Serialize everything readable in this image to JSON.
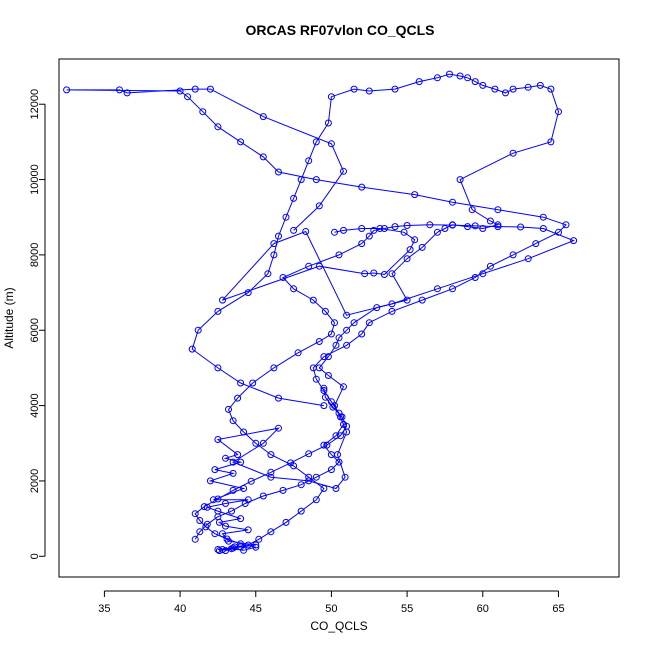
{
  "chart_data": {
    "type": "line",
    "title": "ORCAS RF07vlon CO_QCLS",
    "xlabel": "CO_QCLS",
    "ylabel": "Altitude (m)",
    "xlim": [
      32,
      69
    ],
    "ylim": [
      -550,
      13200
    ],
    "xticks": [
      "35",
      "40",
      "45",
      "50",
      "55",
      "60",
      "65"
    ],
    "yticks": [
      "0",
      "2000",
      "4000",
      "6000",
      "8000",
      "10000",
      "12000"
    ],
    "grid": false,
    "legend": "none",
    "colors": {
      "series": "#0000ff",
      "axis": "#000000"
    },
    "series": [
      {
        "x": [
          43.0,
          44.0,
          42.5,
          43.5,
          45.0,
          43.2,
          42.8,
          44.5,
          43.0,
          42.6,
          44.0,
          42.5,
          41.8,
          43.0,
          44.5,
          42.2,
          44.2,
          42.0,
          43.5,
          42.3,
          44.0,
          43.0,
          43.8,
          42.5,
          46.5,
          45.5,
          43.5,
          46.0,
          48.5,
          50.3,
          50.9,
          50.4,
          51.0,
          50.6,
          50.2,
          50.8,
          49.8,
          49.2,
          49.8,
          50.3,
          50.5,
          51.0,
          51.5,
          53.0,
          55.0,
          54.0,
          55.0,
          56.0,
          57.0,
          57.5,
          58.0,
          59.0,
          60.0,
          61.0,
          60.5,
          59.3,
          58.5,
          62.0,
          64.5,
          65.0,
          64.5,
          63.8,
          63.0,
          62.0,
          61.5,
          60.8,
          60.0,
          59.5,
          59.0,
          58.5,
          57.8,
          57.0,
          55.8,
          54.2,
          52.5,
          51.5,
          50.0,
          49.8,
          49.0,
          48.5,
          48.0,
          47.5,
          47.0,
          46.5,
          46.2,
          45.8,
          44.5,
          42.5,
          41.2,
          40.8,
          42.5,
          44.0,
          46.5,
          49.5
        ],
        "y": [
          150,
          250,
          180,
          220,
          300,
          400,
          600,
          700,
          800,
          900,
          1000,
          1200,
          1300,
          1400,
          1500,
          1500,
          1800,
          2000,
          2200,
          2300,
          2500,
          2600,
          2700,
          3100,
          3400,
          3000,
          2500,
          2100,
          2000,
          1800,
          2100,
          2700,
          3300,
          3700,
          4000,
          4500,
          4800,
          5000,
          5300,
          5600,
          5800,
          6000,
          6200,
          6600,
          6800,
          7500,
          7900,
          8200,
          8600,
          8700,
          8800,
          8750,
          8700,
          8800,
          8900,
          9200,
          10000,
          10700,
          11000,
          11800,
          12400,
          12500,
          12450,
          12400,
          12300,
          12400,
          12500,
          12600,
          12700,
          12750,
          12800,
          12700,
          12600,
          12400,
          12350,
          12400,
          12200,
          11500,
          11000,
          10500,
          10000,
          9500,
          9000,
          8500,
          8000,
          7500,
          7000,
          6500,
          6000,
          5500,
          5000,
          4600,
          4200,
          4000
        ]
      },
      {
        "x": [
          42.8,
          43.6,
          44.5,
          45.2,
          46.0,
          47.0,
          48.0,
          49.0,
          49.5,
          48.5,
          47.5,
          46.0,
          45.0,
          44.2,
          43.5,
          43.2,
          43.8,
          44.8,
          46.2,
          47.8,
          49.2,
          50.0,
          50.2,
          49.6,
          48.8,
          47.5,
          46.8,
          48.5,
          50.5,
          52.0,
          52.5,
          52.8,
          53.5,
          54.2,
          55.0,
          56.5,
          58.0,
          59.5,
          61.0,
          62.5,
          64.0,
          66.0,
          63.0,
          60.0,
          57.0,
          54.0,
          51.0,
          48.3,
          46.2,
          42.8,
          49.2,
          52.2,
          52.8,
          53.5,
          55.2,
          55.5,
          54.8,
          53.2,
          52.0,
          50.8,
          50.2
        ],
        "y": [
          180,
          250,
          300,
          450,
          650,
          900,
          1200,
          1500,
          1800,
          2100,
          2400,
          2700,
          3000,
          3300,
          3600,
          3900,
          4200,
          4600,
          5000,
          5400,
          5700,
          5900,
          6200,
          6500,
          6800,
          7100,
          7400,
          7700,
          8000,
          8300,
          8500,
          8650,
          8700,
          8750,
          8780,
          8800,
          8790,
          8770,
          8750,
          8740,
          8700,
          8380,
          7900,
          7500,
          7100,
          6700,
          6400,
          8620,
          8300,
          6800,
          7700,
          7500,
          7520,
          7480,
          8140,
          8400,
          8600,
          8700,
          8700,
          8650,
          8600
        ]
      },
      {
        "x": [
          41.0,
          41.3,
          41.8,
          42.5,
          43.4,
          44.3,
          45.5,
          46.8,
          48.0,
          49.0,
          50.0,
          50.5,
          50.0,
          49.5,
          50.3,
          50.8,
          50.5,
          50.0,
          49.5,
          49.0,
          48.8,
          49.5,
          51.0,
          52.0,
          52.5,
          54.0,
          56.0,
          58.0,
          59.5,
          60.5,
          62.0,
          63.5,
          65.0,
          65.5,
          64.0,
          61.0,
          58.0,
          55.5,
          52.0,
          49.0,
          46.5,
          45.5,
          44.0,
          42.5,
          41.5,
          40.5,
          40.0,
          32.5,
          36.0,
          36.5,
          41.0,
          42.0,
          45.5,
          50.0,
          50.8,
          49.2,
          47.5
        ],
        "y": [
          450,
          650,
          850,
          1050,
          1200,
          1400,
          1600,
          1750,
          1900,
          2100,
          2300,
          2500,
          2700,
          2950,
          3200,
          3500,
          3800,
          4100,
          4400,
          4700,
          5000,
          5300,
          5600,
          5900,
          6200,
          6500,
          6800,
          7100,
          7400,
          7700,
          8000,
          8300,
          8600,
          8800,
          9000,
          9200,
          9400,
          9600,
          9800,
          10000,
          10200,
          10600,
          11000,
          11400,
          11800,
          12200,
          12350,
          12380,
          12380,
          12300,
          12400,
          12400,
          11670,
          10950,
          10220,
          9300,
          8650
        ]
      },
      {
        "x": [
          42.6,
          43.4,
          44.2,
          45.0,
          44.0,
          43.1,
          42.3,
          41.7,
          41.3,
          41.0,
          41.6,
          42.5,
          43.5,
          44.7,
          46.0,
          47.3,
          48.5,
          49.7,
          50.6,
          51.0,
          50.7,
          50.1,
          49.6,
          49.5
        ],
        "y": [
          150,
          200,
          160,
          240,
          330,
          460,
          600,
          780,
          950,
          1130,
          1320,
          1520,
          1750,
          1990,
          2230,
          2480,
          2720,
          2950,
          3200,
          3450,
          3700,
          3960,
          4220,
          4460
        ]
      }
    ]
  }
}
